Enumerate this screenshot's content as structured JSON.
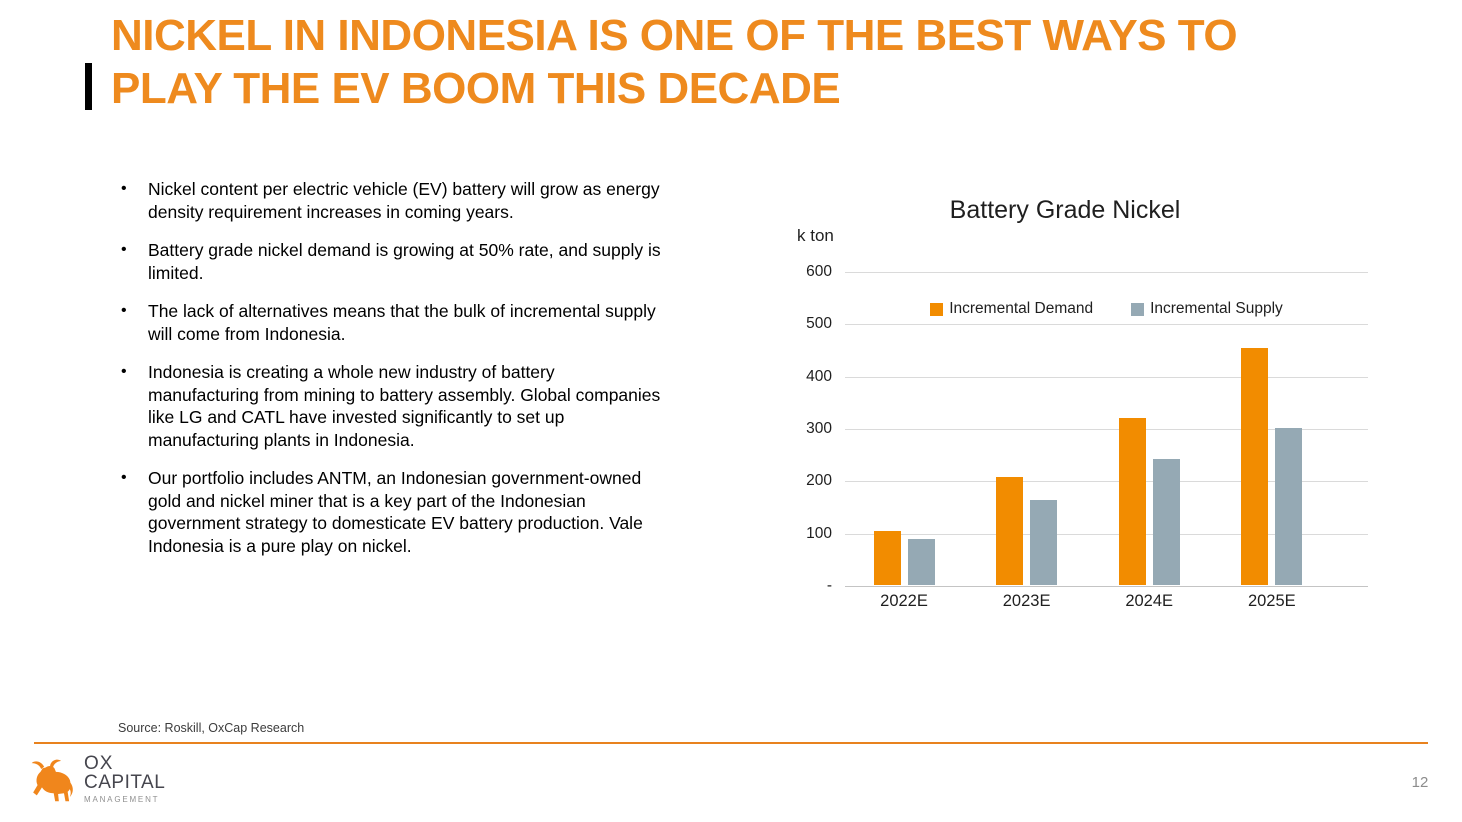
{
  "colors": {
    "title_orange": "#EE8A1E",
    "bar_orange": "#F28C00",
    "bar_gray": "#95A9B4",
    "divider_orange": "#E8821E"
  },
  "header": {
    "title": "NICKEL IN INDONESIA IS ONE OF THE BEST WAYS TO PLAY THE EV BOOM THIS DECADE"
  },
  "bullets": [
    "Nickel content per electric vehicle (EV) battery will grow as energy density requirement increases in coming years.",
    "Battery grade nickel demand is growing at 50% rate, and supply is limited.",
    "The lack of alternatives means that the bulk of incremental supply will come from Indonesia.",
    "Indonesia is creating a whole new industry of battery manufacturing from mining to battery assembly. Global companies like LG and CATL have invested significantly to set up manufacturing plants in Indonesia.",
    "Our portfolio includes ANTM, an Indonesian government-owned gold and nickel miner that is a key part of the Indonesian government strategy to domesticate EV battery production. Vale Indonesia is a pure play on nickel."
  ],
  "chart_data": {
    "type": "bar",
    "title": "Battery Grade Nickel",
    "unit_label": "k ton",
    "categories": [
      "2022E",
      "2023E",
      "2024E",
      "2025E"
    ],
    "series": [
      {
        "name": "Incremental Demand",
        "color": "#F28C00",
        "values": [
          103,
          207,
          320,
          452
        ]
      },
      {
        "name": "Incremental Supply",
        "color": "#95A9B4",
        "values": [
          88,
          163,
          240,
          300
        ]
      }
    ],
    "ylim": [
      0,
      600
    ],
    "ytick_step": 100,
    "ytick_labels": [
      "-",
      "100",
      "200",
      "300",
      "400",
      "500",
      "600"
    ],
    "grid": true,
    "legend_position": "top-center-inside"
  },
  "footer": {
    "source": "Source: Roskill, OxCap Research",
    "page_number": "12",
    "logo_line1": "OX",
    "logo_line2": "CAPITAL",
    "logo_line3": "MANAGEMENT"
  }
}
